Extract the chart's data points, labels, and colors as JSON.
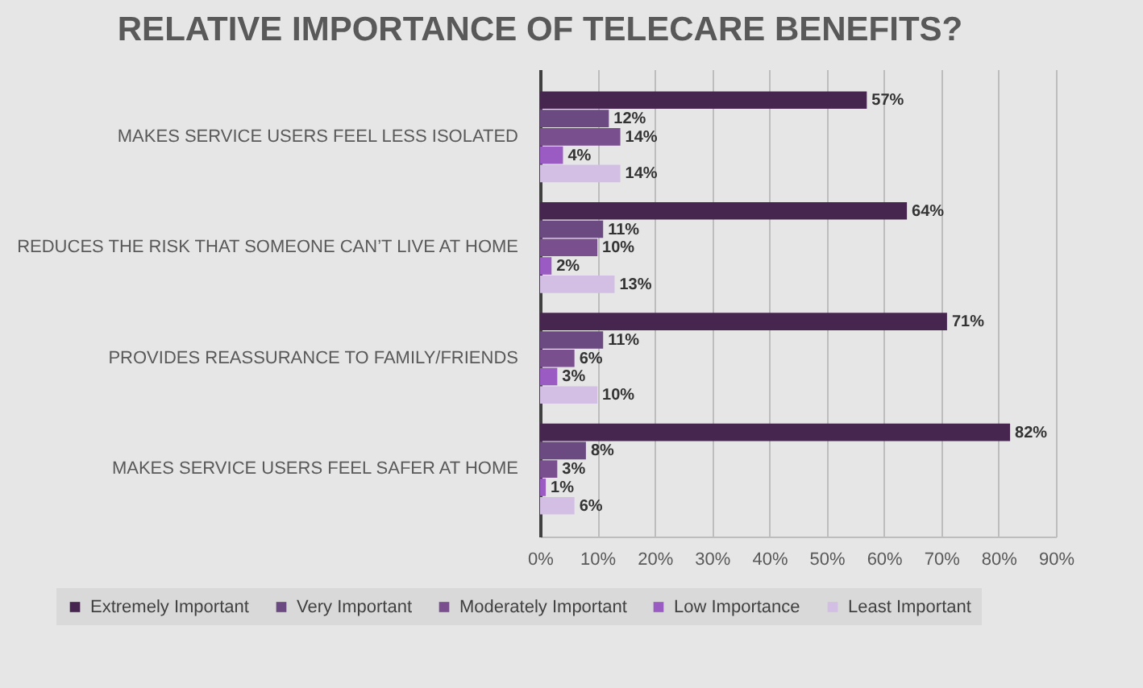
{
  "chart_data": {
    "type": "bar",
    "orientation": "horizontal",
    "title": "RELATIVE IMPORTANCE OF TELECARE BENEFITS?",
    "categories": [
      "MAKES SERVICE USERS FEEL LESS ISOLATED",
      "REDUCES THE RISK THAT SOMEONE CAN’T LIVE AT HOME",
      "PROVIDES REASSURANCE TO FAMILY/FRIENDS",
      "MAKES SERVICE USERS FEEL SAFER AT HOME"
    ],
    "series": [
      {
        "name": "Extremely Important",
        "color": "#46264f",
        "values": [
          57,
          64,
          71,
          82
        ],
        "value_labels": [
          "57%",
          "64%",
          "71%",
          "82%"
        ]
      },
      {
        "name": "Very Important",
        "color": "#6a4a80",
        "values": [
          12,
          11,
          11,
          8
        ],
        "value_labels": [
          "12%",
          "11%",
          "11%",
          "8%"
        ]
      },
      {
        "name": "Moderately Important",
        "color": "#7a4f8e",
        "values": [
          14,
          10,
          6,
          3
        ],
        "value_labels": [
          "14%",
          "10%",
          "6%",
          "3%"
        ]
      },
      {
        "name": "Low Importance",
        "color": "#9a5cc2",
        "values": [
          4,
          2,
          3,
          1
        ],
        "value_labels": [
          "4%",
          "2%",
          "3%",
          "1%"
        ]
      },
      {
        "name": "Least Important",
        "color": "#d3bfe4",
        "values": [
          14,
          13,
          10,
          6
        ],
        "value_labels": [
          "14%",
          "13%",
          "10%",
          "6%"
        ]
      }
    ],
    "xlim": [
      0,
      90
    ],
    "xticks": [
      {
        "value": 0,
        "label": "0%"
      },
      {
        "value": 10,
        "label": "10%"
      },
      {
        "value": 20,
        "label": "20%"
      },
      {
        "value": 30,
        "label": "30%"
      },
      {
        "value": 40,
        "label": "40%"
      },
      {
        "value": 50,
        "label": "50%"
      },
      {
        "value": 60,
        "label": "60%"
      },
      {
        "value": 70,
        "label": "70%"
      },
      {
        "value": 80,
        "label": "80%"
      },
      {
        "value": 90,
        "label": "90%"
      }
    ],
    "grid": "x",
    "legend": "bottom"
  }
}
